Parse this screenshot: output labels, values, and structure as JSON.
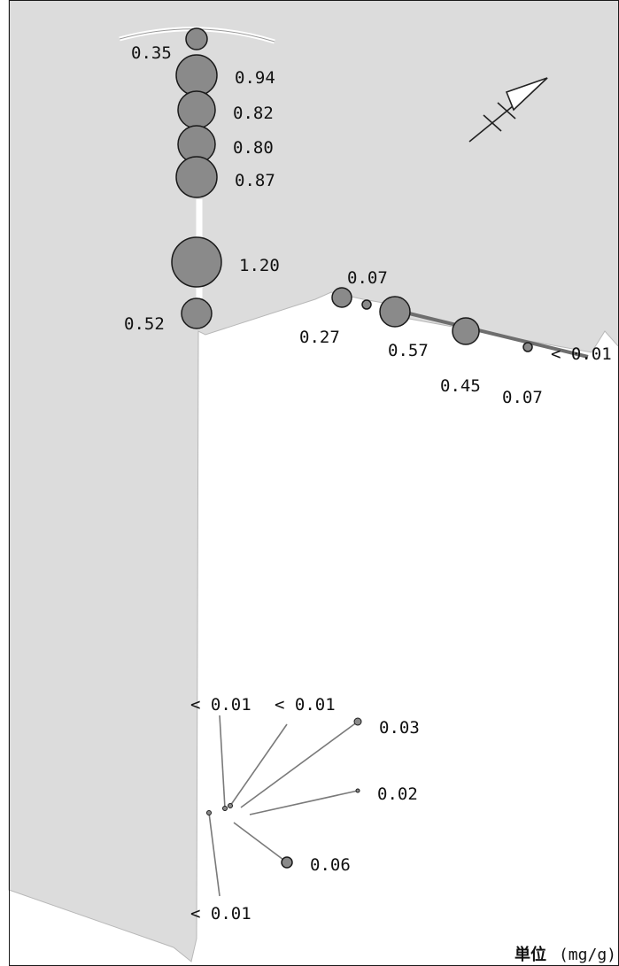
{
  "map": {
    "unit_prefix": "単位",
    "unit_suffix": "(mg/g)",
    "colors": {
      "land": "#dcdcdc",
      "water": "#ffffff",
      "marker_fill": "#8a8a8a",
      "marker_stroke": "#1a1a1a",
      "sea_wall": "#6e6e6e"
    },
    "icons": [
      "north-arrow-icon"
    ],
    "samples": [
      {
        "id": "a1",
        "label": "0.35",
        "value": 0.35
      },
      {
        "id": "a2",
        "label": "0.94",
        "value": 0.94
      },
      {
        "id": "a3",
        "label": "0.82",
        "value": 0.82
      },
      {
        "id": "a4",
        "label": "0.80",
        "value": 0.8
      },
      {
        "id": "a5",
        "label": "0.87",
        "value": 0.87
      },
      {
        "id": "a6",
        "label": "1.20",
        "value": 1.2
      },
      {
        "id": "a7",
        "label": "0.52",
        "value": 0.52
      },
      {
        "id": "b1",
        "label": "0.27",
        "value": 0.27
      },
      {
        "id": "b2",
        "label": "0.07",
        "value": 0.07
      },
      {
        "id": "b3",
        "label": "0.57",
        "value": 0.57
      },
      {
        "id": "b4",
        "label": "0.45",
        "value": 0.45
      },
      {
        "id": "b5",
        "label": "0.07",
        "value": 0.07
      },
      {
        "id": "b6",
        "label": "< 0.01",
        "value": 0.0
      },
      {
        "id": "c1",
        "label": "< 0.01",
        "value": 0.0
      },
      {
        "id": "c2",
        "label": "< 0.01",
        "value": 0.0
      },
      {
        "id": "c3",
        "label": "0.03",
        "value": 0.03
      },
      {
        "id": "c4",
        "label": "0.02",
        "value": 0.02
      },
      {
        "id": "c5",
        "label": "0.06",
        "value": 0.06
      },
      {
        "id": "c6",
        "label": "< 0.01",
        "value": 0.0
      }
    ]
  }
}
